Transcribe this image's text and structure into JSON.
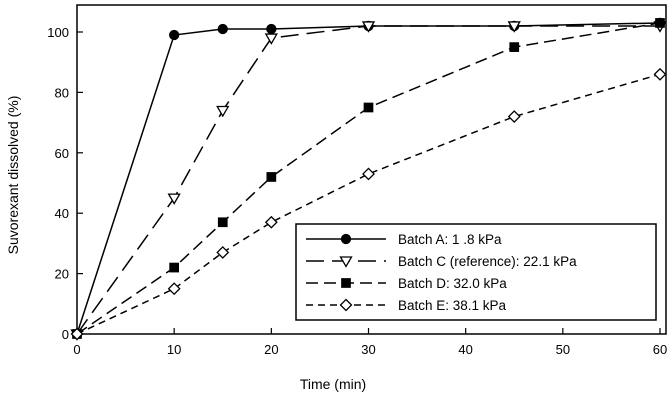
{
  "chart_data": {
    "type": "line",
    "xlabel": "Time (min)",
    "ylabel": "Suvorexant dissolved (%)",
    "xlim": [
      0,
      60
    ],
    "ylim": [
      0,
      105
    ],
    "xticks": [
      0,
      10,
      20,
      30,
      40,
      50,
      60
    ],
    "yticks": [
      0,
      20,
      40,
      60,
      80,
      100
    ],
    "grid": false,
    "legend_position": "bottom-right",
    "series": [
      {
        "name": "Batch A: 1  .8 kPa",
        "marker": "filled-circle",
        "line_style": "solid",
        "x": [
          0,
          10,
          15,
          20,
          30,
          45,
          60
        ],
        "y": [
          0,
          99,
          101,
          101,
          102,
          102,
          103
        ]
      },
      {
        "name": "Batch C (reference): 22.1 kPa",
        "marker": "open-triangle-down",
        "line_style": "long-dash",
        "x": [
          0,
          10,
          15,
          20,
          30,
          45,
          60
        ],
        "y": [
          0,
          45,
          74,
          98,
          102,
          102,
          102
        ]
      },
      {
        "name": "Batch D: 32.0 kPa",
        "marker": "filled-square",
        "line_style": "dash",
        "x": [
          0,
          10,
          15,
          20,
          30,
          45,
          60
        ],
        "y": [
          0,
          22,
          37,
          52,
          75,
          95,
          103
        ]
      },
      {
        "name": "Batch E: 38.1 kPa",
        "marker": "open-diamond",
        "line_style": "short-dash",
        "x": [
          0,
          10,
          15,
          20,
          30,
          45,
          60
        ],
        "y": [
          0,
          15,
          27,
          37,
          53,
          72,
          86
        ]
      }
    ]
  }
}
